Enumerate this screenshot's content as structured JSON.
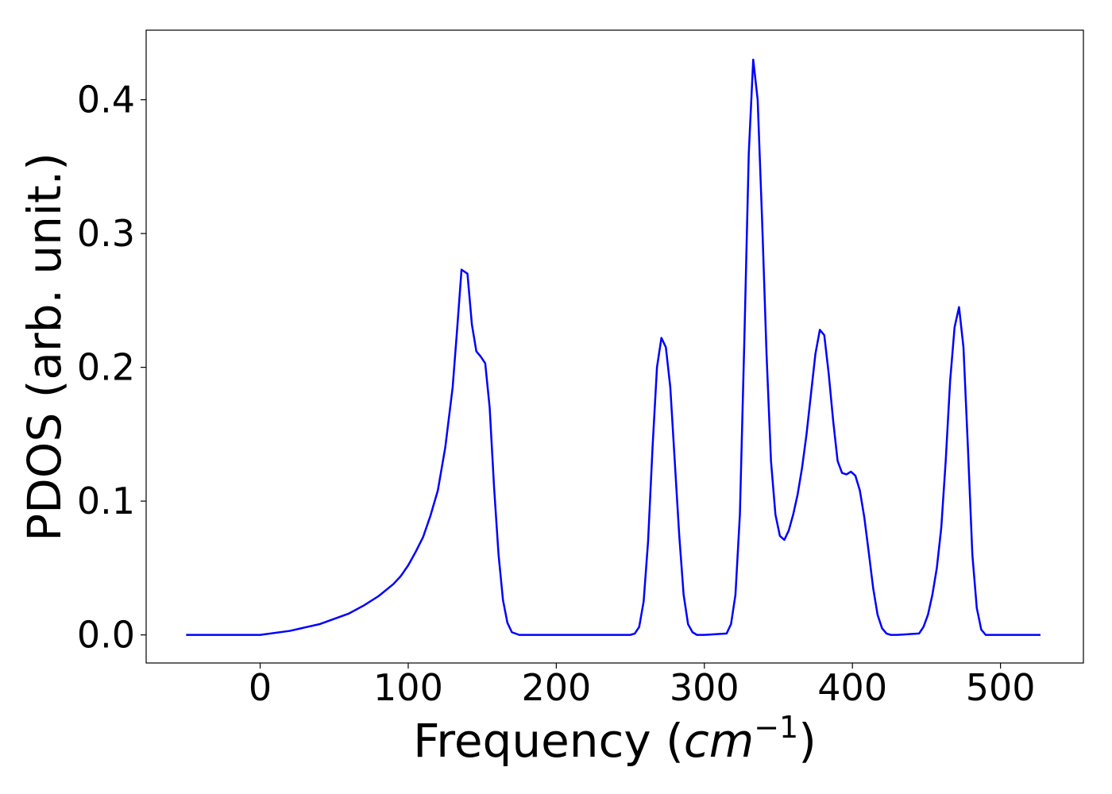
{
  "chart_data": {
    "type": "line",
    "title": "",
    "xlabel": {
      "prefix": "Frequency (",
      "math": "cm",
      "sup": "−1",
      "suffix": ")"
    },
    "ylabel": "PDOS (arb. unit.)",
    "xlim": [
      -77,
      556
    ],
    "ylim": [
      -0.021,
      0.452
    ],
    "x_ticks": [
      0,
      100,
      200,
      300,
      400,
      500
    ],
    "x_tick_labels": [
      "0",
      "100",
      "200",
      "300",
      "400",
      "500"
    ],
    "y_ticks": [
      0.0,
      0.1,
      0.2,
      0.3,
      0.4
    ],
    "y_tick_labels": [
      "0.0",
      "0.1",
      "0.2",
      "0.3",
      "0.4"
    ],
    "grid": false,
    "legend": "none",
    "series": [
      {
        "color": "#0000ff",
        "x": [
          -50,
          0,
          20,
          40,
          60,
          70,
          80,
          90,
          95,
          100,
          105,
          110,
          115,
          120,
          125,
          130,
          133,
          136,
          140,
          143,
          146,
          149,
          152,
          155,
          158,
          161,
          164,
          167,
          170,
          175,
          250,
          253,
          256,
          259,
          262,
          265,
          268,
          271,
          274,
          277,
          280,
          283,
          286,
          289,
          292,
          295,
          300,
          315,
          318,
          321,
          324,
          327,
          330,
          333,
          336,
          339,
          342,
          345,
          348,
          351,
          354,
          357,
          360,
          363,
          366,
          369,
          372,
          375,
          378,
          381,
          384,
          387,
          390,
          393,
          396,
          399,
          402,
          405,
          408,
          411,
          414,
          417,
          420,
          423,
          426,
          430,
          445,
          448,
          451,
          454,
          457,
          460,
          463,
          466,
          469,
          472,
          475,
          478,
          481,
          484,
          487,
          490,
          495,
          527
        ],
        "y": [
          0,
          0,
          0.003,
          0.008,
          0.016,
          0.022,
          0.029,
          0.038,
          0.044,
          0.052,
          0.062,
          0.073,
          0.089,
          0.108,
          0.14,
          0.185,
          0.228,
          0.273,
          0.27,
          0.232,
          0.212,
          0.208,
          0.203,
          0.17,
          0.11,
          0.06,
          0.026,
          0.009,
          0.002,
          0,
          0,
          0.001,
          0.006,
          0.025,
          0.07,
          0.14,
          0.2,
          0.222,
          0.215,
          0.185,
          0.13,
          0.075,
          0.03,
          0.008,
          0.002,
          0,
          0,
          0.001,
          0.008,
          0.03,
          0.09,
          0.22,
          0.36,
          0.43,
          0.4,
          0.31,
          0.21,
          0.13,
          0.09,
          0.074,
          0.071,
          0.078,
          0.09,
          0.105,
          0.125,
          0.15,
          0.18,
          0.21,
          0.228,
          0.224,
          0.195,
          0.16,
          0.13,
          0.121,
          0.12,
          0.122,
          0.119,
          0.108,
          0.088,
          0.062,
          0.035,
          0.015,
          0.005,
          0.001,
          0,
          0,
          0.001,
          0.006,
          0.015,
          0.03,
          0.05,
          0.08,
          0.13,
          0.19,
          0.23,
          0.245,
          0.215,
          0.14,
          0.06,
          0.02,
          0.004,
          0,
          0,
          0
        ]
      }
    ]
  }
}
